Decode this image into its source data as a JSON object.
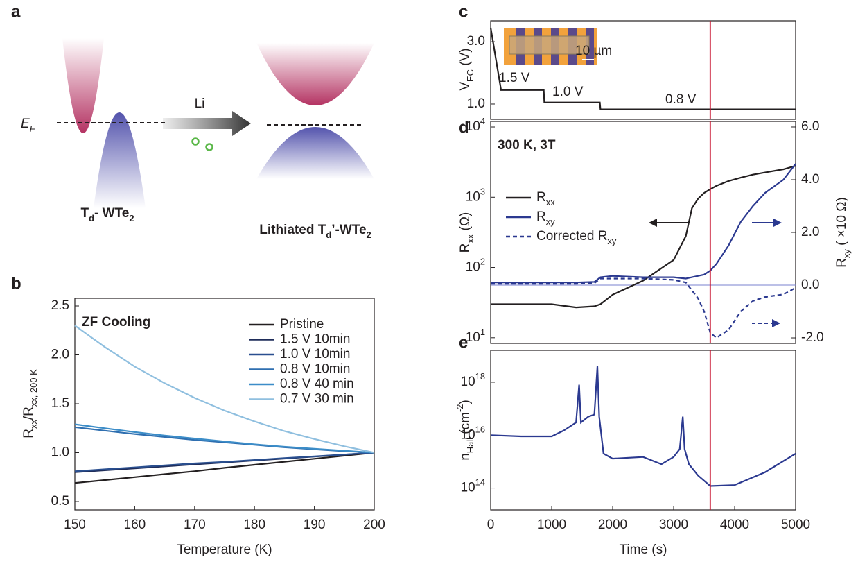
{
  "diagram": {
    "panel_label": "a",
    "fermi_label": [
      "E",
      {
        "sub": "F"
      }
    ],
    "arrow_label": "Li",
    "left_label": [
      "T",
      {
        "sub": "d"
      },
      "- WTe",
      {
        "sub": "2"
      }
    ],
    "right_label": [
      "Lithiated T",
      {
        "sub": "d"
      },
      "’-WTe",
      {
        "sub": "2"
      }
    ]
  },
  "chart_data": [
    {
      "type": "line",
      "panel_label": "b",
      "annotation": "ZF Cooling",
      "xlabel": "Temperature (K)",
      "ylabel": [
        "R",
        {
          "sub": "xx"
        },
        "/R",
        {
          "sub": "xx, 200 K"
        }
      ],
      "x": [
        150,
        155,
        160,
        165,
        170,
        175,
        180,
        185,
        190,
        195,
        200
      ],
      "xlim": [
        150,
        200
      ],
      "xticks": [
        150,
        160,
        170,
        180,
        190,
        200
      ],
      "ylim": [
        0.415,
        2.578
      ],
      "yticks": [
        0.5,
        {
          "value": 1,
          "label": "1.0"
        },
        1.5,
        {
          "value": 2,
          "label": "2.0"
        },
        2.5
      ],
      "legend": "upper right",
      "series": [
        {
          "name": "Pristine",
          "color": "#231f20",
          "values": [
            0.69,
            0.72,
            0.75,
            0.78,
            0.81,
            0.845,
            0.876,
            0.907,
            0.938,
            0.969,
            1.0
          ]
        },
        {
          "name": "1.5 V 10min",
          "color": "#1f2d5a",
          "values": [
            0.8,
            0.82,
            0.84,
            0.86,
            0.88,
            0.9,
            0.92,
            0.94,
            0.96,
            0.98,
            1.0
          ]
        },
        {
          "name": "1.0 V 10min",
          "color": "#2a4f8f",
          "values": [
            0.81,
            0.83,
            0.85,
            0.87,
            0.89,
            0.905,
            0.925,
            0.945,
            0.962,
            0.981,
            1.0
          ]
        },
        {
          "name": "0.8 V 10min",
          "color": "#2f6fb0",
          "values": [
            1.26,
            1.225,
            1.19,
            1.16,
            1.13,
            1.105,
            1.08,
            1.055,
            1.035,
            1.015,
            1.0
          ]
        },
        {
          "name": "0.8 V 40 min",
          "color": "#3c8dc8",
          "values": [
            1.29,
            1.25,
            1.21,
            1.175,
            1.145,
            1.115,
            1.085,
            1.06,
            1.04,
            1.02,
            1.0
          ]
        },
        {
          "name": "0.7 V 30 min",
          "color": "#8fbfdf",
          "values": [
            2.3,
            2.08,
            1.88,
            1.71,
            1.56,
            1.43,
            1.32,
            1.22,
            1.14,
            1.065,
            1.0
          ]
        }
      ]
    },
    {
      "type": "line",
      "panel_label": "c",
      "ylabel": [
        "V",
        {
          "sub": "EC"
        },
        " (V)"
      ],
      "x": [
        0,
        170,
        870,
        880,
        1790,
        1800,
        5000
      ],
      "xlim": [
        0,
        5000
      ],
      "ylim": [
        0.51,
        3.67
      ],
      "yticks": [
        {
          "value": 1,
          "label": "1.0"
        },
        {
          "value": 3,
          "label": "3.0"
        }
      ],
      "series": [
        {
          "color": "#231f20",
          "values": [
            3.45,
            1.45,
            1.45,
            1.05,
            1.05,
            0.83,
            0.83
          ]
        }
      ],
      "step_labels": [
        "1.5 V",
        "1.0 V",
        "0.8 V"
      ],
      "inset": {
        "scale_label": "10 µm"
      },
      "marker_line": {
        "x": 3600,
        "color": "#c8102e"
      }
    },
    {
      "type": "line",
      "panel_label": "d",
      "annotation": "300 K, 3T",
      "log_y": true,
      "ylabel": [
        "R",
        {
          "sub": "xx"
        },
        " (Ω)"
      ],
      "y2label": [
        "R",
        {
          "sub": "xy"
        },
        " ( ×10 Ω)"
      ],
      "x": [
        0,
        500,
        1000,
        1400,
        1700,
        1800,
        2000,
        2500,
        3000,
        3200,
        3300,
        3400,
        3500,
        3600,
        3700,
        3900,
        4100,
        4300,
        4500,
        4800,
        5000
      ],
      "xlim": [
        0,
        5000
      ],
      "ylim": [
        8.3,
        12000
      ],
      "yticks": [
        {
          "value": 10,
          "label": [
            "10",
            {
              "sup": "1"
            }
          ]
        },
        {
          "value": 100,
          "label": [
            "10",
            {
              "sup": "2"
            }
          ]
        },
        {
          "value": 1000,
          "label": [
            "10",
            {
              "sup": "3"
            }
          ]
        },
        {
          "value": 10000,
          "label": [
            "10",
            {
              "sup": "4"
            }
          ]
        }
      ],
      "y2lim": [
        -2.21,
        6.21
      ],
      "y2ticks": [
        {
          "value": -2,
          "label": "-2.0"
        },
        {
          "value": 0,
          "label": "0.0"
        },
        {
          "value": 2,
          "label": "2.0"
        },
        {
          "value": 4,
          "label": "4.0"
        },
        {
          "value": 6,
          "label": "6.0"
        }
      ],
      "y2color": "#2b3990",
      "legend": "upper left",
      "reference_line": {
        "axis": "y2",
        "value": 0,
        "color": "#7a82cf"
      },
      "series": [
        {
          "name": [
            "R",
            {
              "sub": "xx"
            }
          ],
          "color": "#231f20",
          "values": [
            30,
            30,
            30,
            27,
            28,
            30,
            41,
            65,
            128,
            280,
            700,
            950,
            1150,
            1300,
            1450,
            1700,
            1900,
            2100,
            2250,
            2500,
            2800
          ]
        },
        {
          "name": [
            "R",
            {
              "sub": "xy"
            }
          ],
          "color": "#2b3990",
          "axis": "y2",
          "values": [
            0.1,
            0.1,
            0.1,
            0.1,
            0.12,
            0.3,
            0.35,
            0.3,
            0.3,
            0.25,
            0.3,
            0.35,
            0.4,
            0.55,
            0.8,
            1.5,
            2.4,
            3.0,
            3.5,
            4.0,
            4.6
          ]
        },
        {
          "name": [
            "Corrected R",
            {
              "sub": "xy"
            }
          ],
          "color": "#2b3990",
          "axis": "y2",
          "dash": true,
          "values": [
            0.05,
            0.05,
            0.05,
            0.05,
            0.07,
            0.25,
            0.25,
            0.25,
            0.2,
            0.1,
            -0.2,
            -0.5,
            -1.0,
            -1.8,
            -2.0,
            -1.7,
            -1.0,
            -0.6,
            -0.45,
            -0.35,
            -0.1
          ]
        }
      ],
      "marker_line": {
        "x": 3600,
        "color": "#c8102e"
      }
    },
    {
      "type": "line",
      "panel_label": "e",
      "log_y": true,
      "xlabel": "Time (s)",
      "ylabel": [
        "n",
        {
          "sub": "Hall"
        },
        " (cm",
        {
          "sup": "-2"
        },
        ")"
      ],
      "x": [
        0,
        500,
        1000,
        1200,
        1400,
        1450,
        1480,
        1600,
        1700,
        1750,
        1780,
        1850,
        2000,
        2500,
        2800,
        3000,
        3100,
        3150,
        3180,
        3250,
        3400,
        3600,
        4000,
        4500,
        5000
      ],
      "xlim": [
        0,
        5000
      ],
      "xticks": [
        0,
        1000,
        2000,
        3000,
        4000,
        5000
      ],
      "ylim": [
        15000000000000.0,
        1.6e+19
      ],
      "yticks": [
        {
          "value": 100000000000000.0,
          "label": [
            "10",
            {
              "sup": "14"
            }
          ]
        },
        {
          "value": 1e+16,
          "label": [
            "10",
            {
              "sup": "16"
            }
          ]
        },
        {
          "value": 1e+18,
          "label": [
            "10",
            {
              "sup": "18"
            }
          ]
        }
      ],
      "series": [
        {
          "color": "#2b3990",
          "values": [
            1e+16,
            9000000000000000.0,
            9000000000000000.0,
            1.5e+16,
            3e+16,
            8e+17,
            3e+16,
            5e+16,
            6e+16,
            4e+18,
            5e+16,
            2000000000000000.0,
            1300000000000000.0,
            1500000000000000.0,
            800000000000000.0,
            1500000000000000.0,
            3000000000000000.0,
            5e+16,
            3000000000000000.0,
            800000000000000.0,
            300000000000000.0,
            120000000000000.0,
            130000000000000.0,
            400000000000000.0,
            2000000000000000.0
          ]
        }
      ],
      "marker_line": {
        "x": 3600,
        "color": "#c8102e"
      }
    }
  ]
}
